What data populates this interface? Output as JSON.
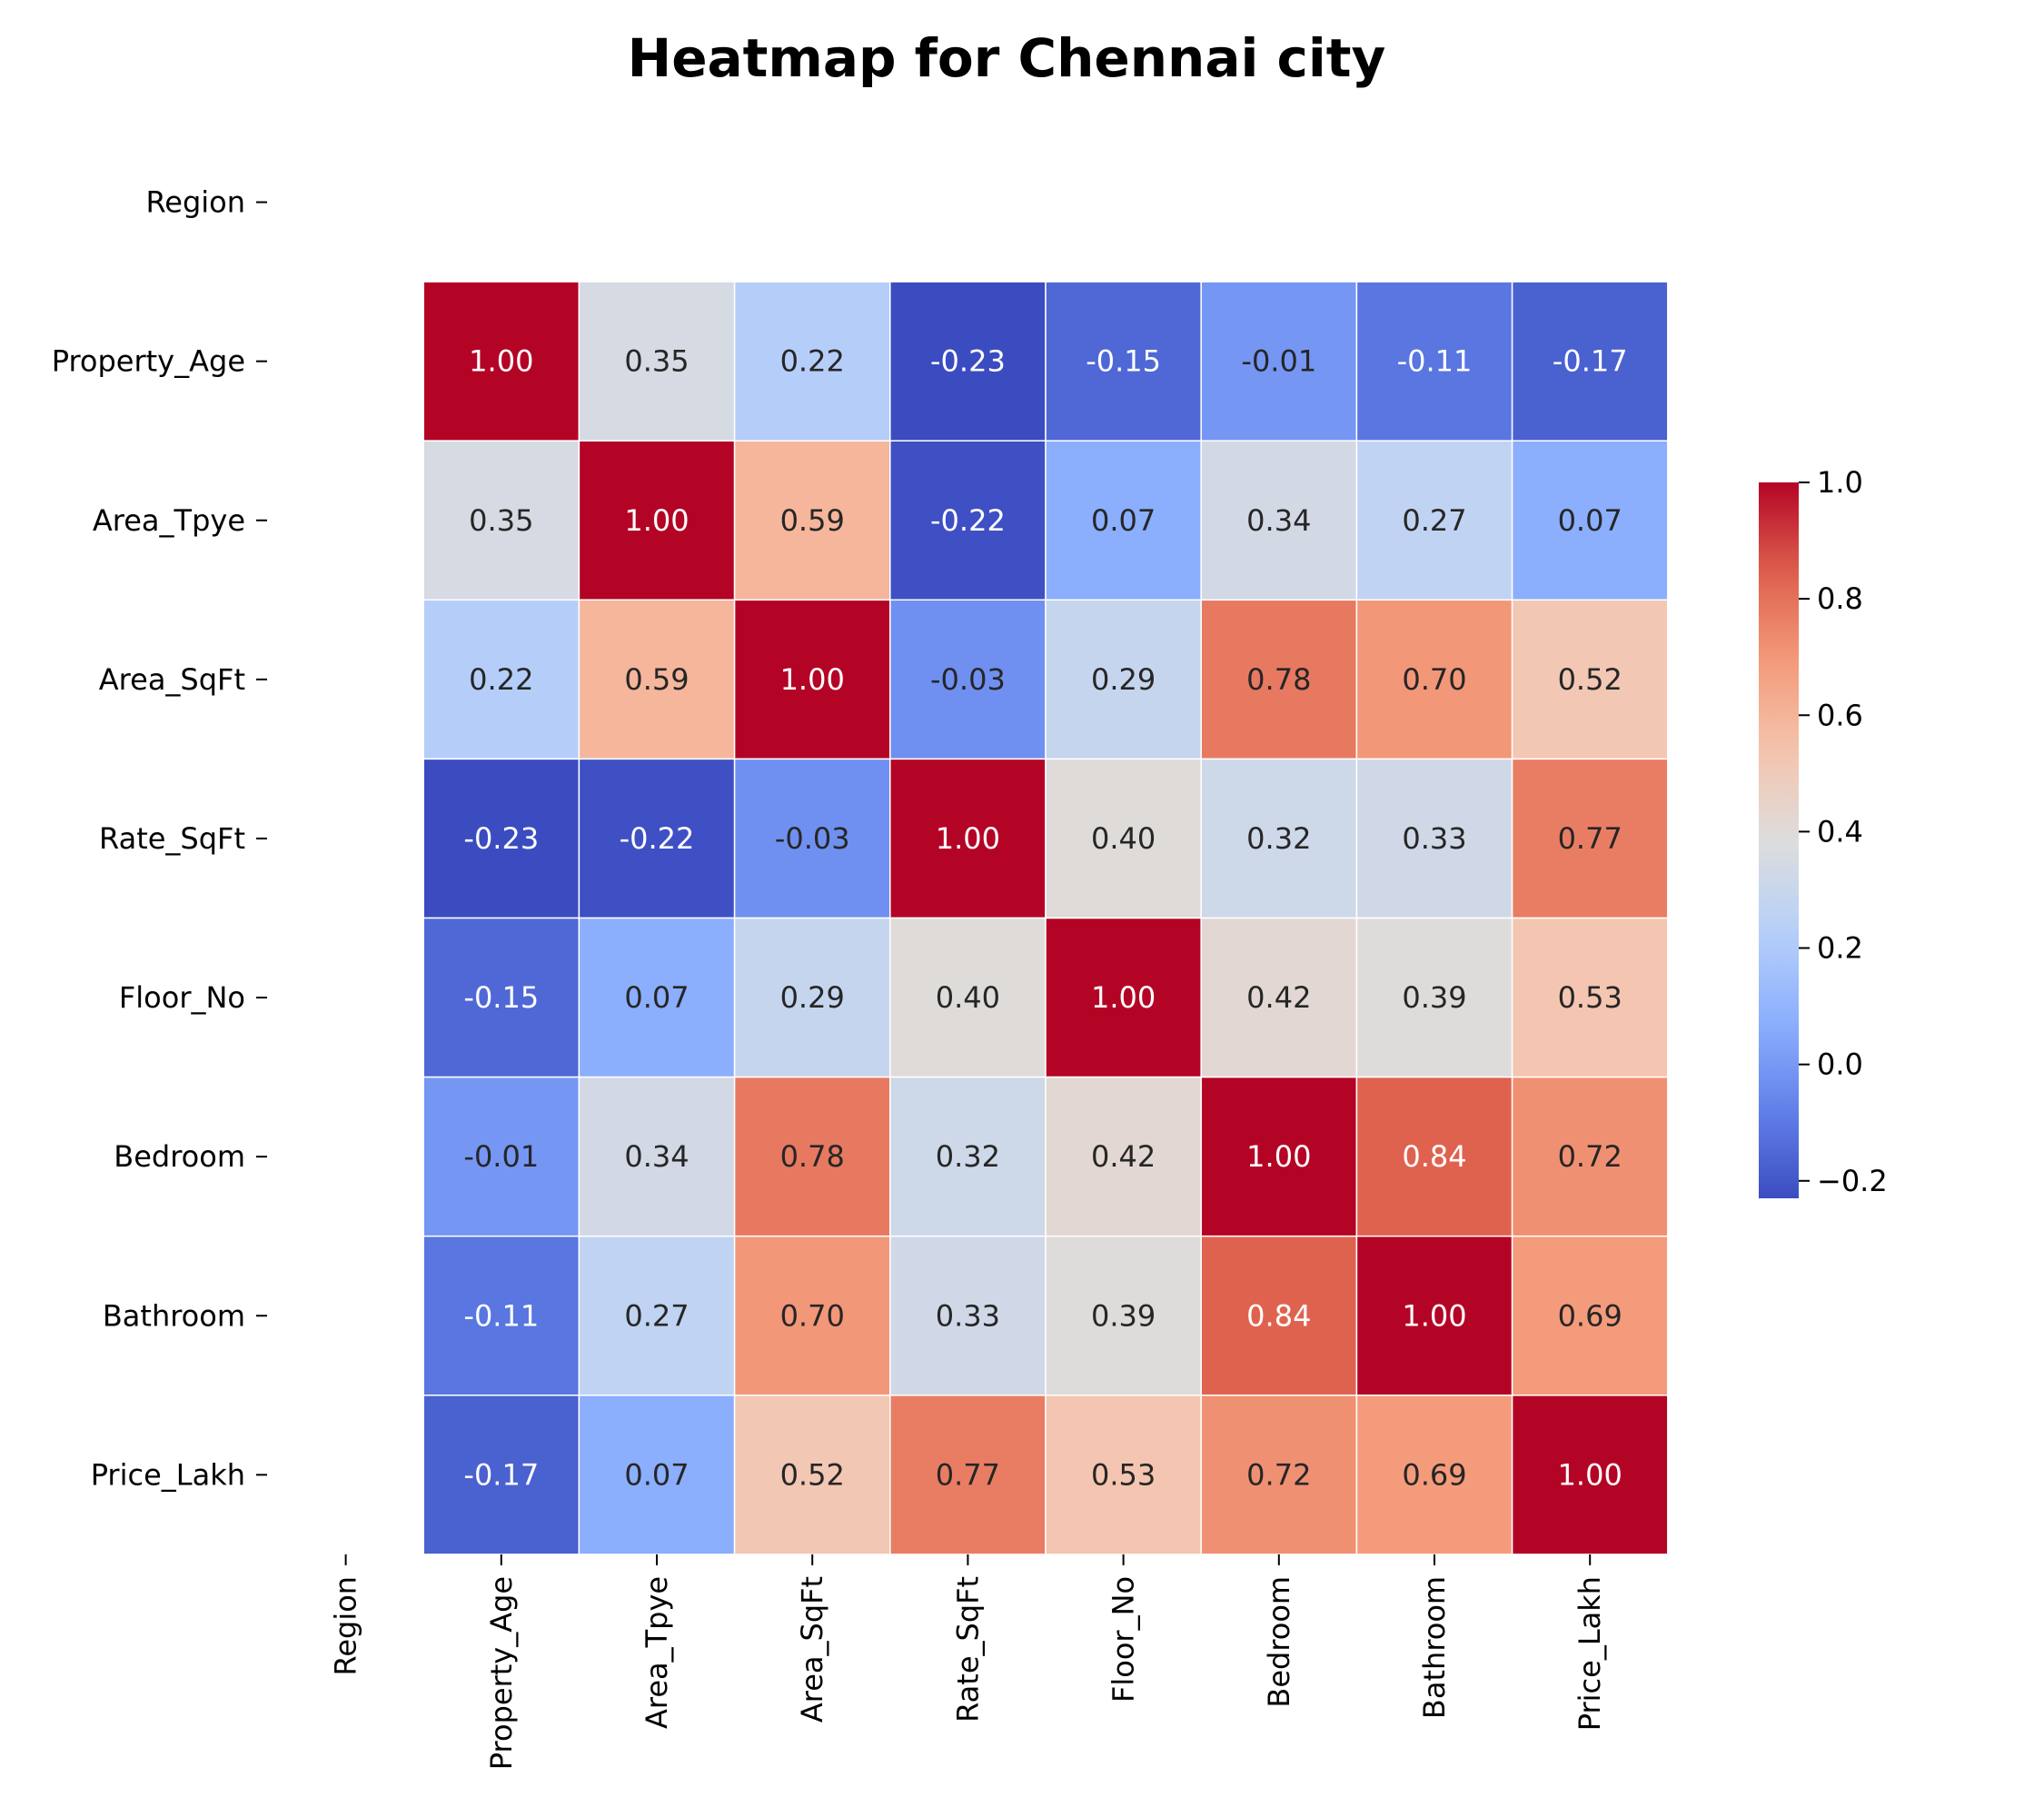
{
  "chart_data": {
    "type": "heatmap",
    "title": "Heatmap for Chennai city",
    "row_labels": [
      "Region",
      "Property_Age",
      "Area_Tpye",
      "Area_SqFt",
      "Rate_SqFt",
      "Floor_No",
      "Bedroom",
      "Bathroom",
      "Price_Lakh"
    ],
    "col_labels": [
      "Region",
      "Property_Age",
      "Area_Tpye",
      "Area_SqFt",
      "Rate_SqFt",
      "Floor_No",
      "Bedroom",
      "Bathroom",
      "Price_Lakh"
    ],
    "values": [
      [
        null,
        null,
        null,
        null,
        null,
        null,
        null,
        null,
        null
      ],
      [
        null,
        1.0,
        0.35,
        0.22,
        -0.23,
        -0.15,
        -0.01,
        -0.11,
        -0.17
      ],
      [
        null,
        0.35,
        1.0,
        0.59,
        -0.22,
        0.07,
        0.34,
        0.27,
        0.07
      ],
      [
        null,
        0.22,
        0.59,
        1.0,
        -0.03,
        0.29,
        0.78,
        0.7,
        0.52
      ],
      [
        null,
        -0.23,
        -0.22,
        -0.03,
        1.0,
        0.4,
        0.32,
        0.33,
        0.77
      ],
      [
        null,
        -0.15,
        0.07,
        0.29,
        0.4,
        1.0,
        0.42,
        0.39,
        0.53
      ],
      [
        null,
        -0.01,
        0.34,
        0.78,
        0.32,
        0.42,
        1.0,
        0.84,
        0.72
      ],
      [
        null,
        -0.11,
        0.27,
        0.7,
        0.33,
        0.39,
        0.84,
        1.0,
        0.69
      ],
      [
        null,
        -0.17,
        0.07,
        0.52,
        0.77,
        0.53,
        0.72,
        0.69,
        1.0
      ]
    ],
    "value_format": "0.00",
    "colormap": "coolwarm",
    "color_range": [
      -0.23,
      1.0
    ],
    "colorbar_ticks": [
      1.0,
      0.8,
      0.6,
      0.4,
      0.2,
      0.0,
      -0.2
    ],
    "colorbar_tick_labels": [
      "1.0",
      "0.8",
      "0.6",
      "0.4",
      "0.2",
      "0.0",
      "−0.2"
    ],
    "grid": false,
    "legend": "colorbar-right"
  }
}
